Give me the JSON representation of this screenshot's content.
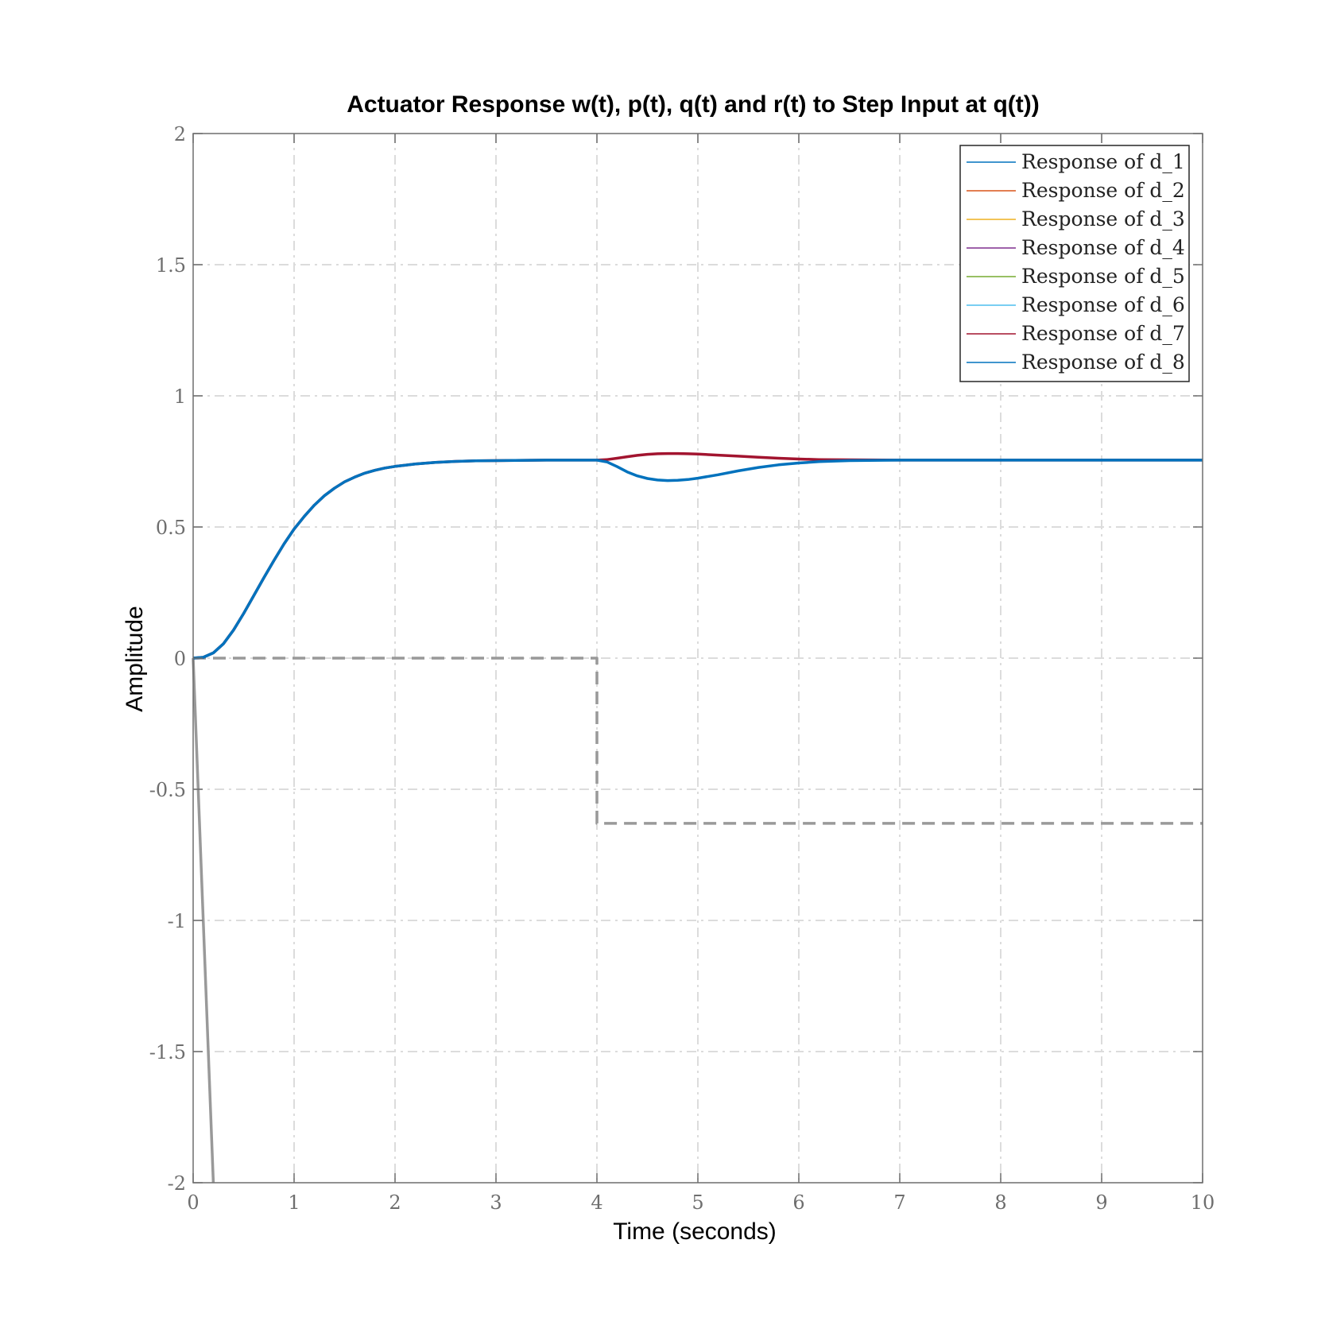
{
  "chart_data": {
    "type": "line",
    "title": "Actuator Response w(t), p(t), q(t) and r(t) to Step Input at q(t))",
    "xlabel": "Time (seconds)",
    "ylabel": "Amplitude",
    "xlim": [
      0,
      10
    ],
    "ylim": [
      -2,
      2
    ],
    "xticks": [
      0,
      1,
      2,
      3,
      4,
      5,
      6,
      7,
      8,
      9,
      10
    ],
    "xtick_labels": [
      "0",
      "1",
      "2",
      "3",
      "4",
      "5",
      "6",
      "7",
      "8",
      "9",
      "10"
    ],
    "yticks": [
      2,
      1.5,
      1,
      0.5,
      0,
      -0.5,
      -1,
      -1.5,
      -2
    ],
    "ytick_labels": [
      "2",
      "1.5",
      "1",
      "0.5",
      "0",
      "-0.5",
      "-1",
      "-1.5",
      "-2"
    ],
    "grid": true,
    "grid_style": "dash-dot",
    "legend_position": "top-right",
    "legend": [
      {
        "label": "Response of d_1",
        "color": "#0072BD"
      },
      {
        "label": "Response of d_2",
        "color": "#D95319"
      },
      {
        "label": "Response of d_3",
        "color": "#EDB120"
      },
      {
        "label": "Response of d_4",
        "color": "#7E2F8E"
      },
      {
        "label": "Response of d_5",
        "color": "#77AC30"
      },
      {
        "label": "Response of d_6",
        "color": "#4DBEEE"
      },
      {
        "label": "Response of d_7",
        "color": "#A2142F"
      },
      {
        "label": "Response of d_8",
        "color": "#0072BD"
      }
    ],
    "series": [
      {
        "color": "#999999",
        "dash": "solid",
        "x": [
          0,
          0.2
        ],
        "y": [
          0,
          -2
        ]
      },
      {
        "color": "#999999",
        "dash": "dashed",
        "x": [
          0,
          4,
          4,
          10
        ],
        "y": [
          0,
          0,
          -0.63,
          -0.63
        ]
      },
      {
        "color": "#A2142F",
        "dash": "solid",
        "x": [
          0,
          0.1,
          0.2,
          0.3,
          0.4,
          0.5,
          0.6,
          0.7,
          0.8,
          0.9,
          1.0,
          1.1,
          1.2,
          1.3,
          1.4,
          1.5,
          1.6,
          1.7,
          1.8,
          1.9,
          2.0,
          2.2,
          2.4,
          2.6,
          2.8,
          3.0,
          3.5,
          4.0,
          4.1,
          4.2,
          4.3,
          4.4,
          4.5,
          4.6,
          4.7,
          4.8,
          4.9,
          5.0,
          5.2,
          5.4,
          5.6,
          5.8,
          6.0,
          6.2,
          6.5,
          7.0,
          8.0,
          9.0,
          10.0
        ],
        "y": [
          0,
          0.003,
          0.02,
          0.055,
          0.107,
          0.17,
          0.238,
          0.306,
          0.372,
          0.435,
          0.492,
          0.54,
          0.583,
          0.619,
          0.648,
          0.672,
          0.69,
          0.705,
          0.716,
          0.725,
          0.731,
          0.74,
          0.746,
          0.75,
          0.752,
          0.753,
          0.755,
          0.755,
          0.757,
          0.762,
          0.768,
          0.773,
          0.777,
          0.779,
          0.78,
          0.78,
          0.779,
          0.778,
          0.774,
          0.77,
          0.766,
          0.762,
          0.759,
          0.757,
          0.756,
          0.755,
          0.755,
          0.755,
          0.755
        ]
      },
      {
        "color": "#0072BD",
        "dash": "solid",
        "x": [
          0,
          0.1,
          0.2,
          0.3,
          0.4,
          0.5,
          0.6,
          0.7,
          0.8,
          0.9,
          1.0,
          1.1,
          1.2,
          1.3,
          1.4,
          1.5,
          1.6,
          1.7,
          1.8,
          1.9,
          2.0,
          2.2,
          2.4,
          2.6,
          2.8,
          3.0,
          3.5,
          4.0,
          4.1,
          4.2,
          4.3,
          4.4,
          4.5,
          4.6,
          4.7,
          4.8,
          4.9,
          5.0,
          5.2,
          5.4,
          5.6,
          5.8,
          6.0,
          6.2,
          6.5,
          7.0,
          8.0,
          9.0,
          10.0
        ],
        "y": [
          0,
          0.003,
          0.02,
          0.055,
          0.107,
          0.17,
          0.238,
          0.306,
          0.372,
          0.435,
          0.492,
          0.54,
          0.583,
          0.619,
          0.648,
          0.672,
          0.69,
          0.705,
          0.716,
          0.725,
          0.731,
          0.74,
          0.746,
          0.75,
          0.752,
          0.753,
          0.755,
          0.755,
          0.748,
          0.73,
          0.71,
          0.695,
          0.685,
          0.679,
          0.677,
          0.678,
          0.681,
          0.686,
          0.699,
          0.714,
          0.727,
          0.737,
          0.744,
          0.749,
          0.753,
          0.755,
          0.755,
          0.755,
          0.755
        ]
      }
    ]
  }
}
